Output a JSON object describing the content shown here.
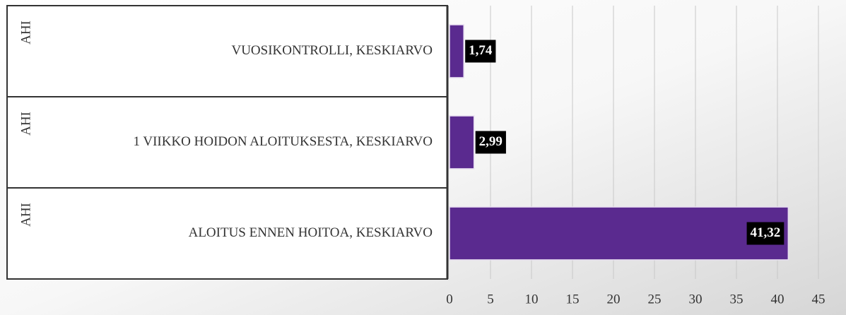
{
  "chart_data": {
    "type": "hbar",
    "category_groups": [
      "AHI",
      "AHI",
      "AHI"
    ],
    "categories": [
      "VUOSIKONTROLLI, KESKIARVO",
      "1 VIIKKO HOIDON ALOITUKSESTA, KESKIARVO",
      "ALOITUS ENNEN HOITOA, KESKIARVO"
    ],
    "values": [
      1.74,
      2.99,
      41.32
    ],
    "value_labels": [
      "1,74",
      "2,99",
      "41,32"
    ],
    "color": "#5a2a8f",
    "xlim": [
      0,
      45
    ],
    "xticks": [
      0,
      5,
      10,
      15,
      20,
      25,
      30,
      35,
      40,
      45
    ],
    "grid": true
  }
}
